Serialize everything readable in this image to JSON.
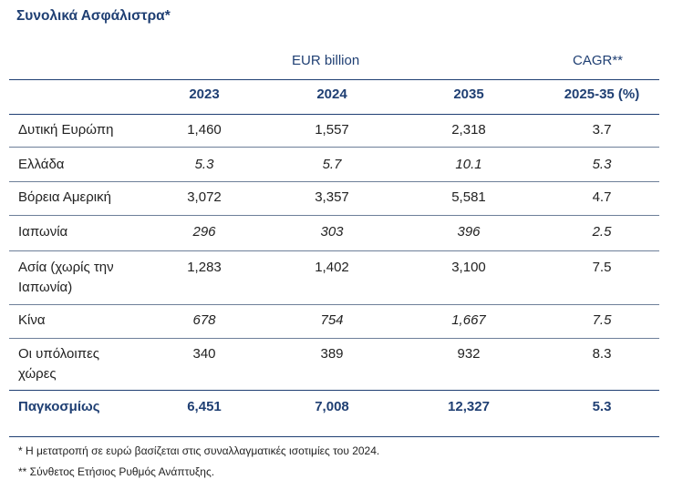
{
  "title": "Συνολικά Ασφάλιστρα*",
  "header": {
    "eur": "EUR billion",
    "cagr": "CAGR**",
    "years": [
      "2023",
      "2024",
      "2035"
    ],
    "cagr_period": "2025-35  (%)"
  },
  "rows": [
    {
      "label": "Δυτική Ευρώπη",
      "v2023": "1,460",
      "v2024": "1,557",
      "v2035": "2,318",
      "cagr": "3.7"
    },
    {
      "label": "Ελλάδα",
      "v2023": "5.3",
      "v2024": "5.7",
      "v2035": "10.1",
      "cagr": "5.3"
    },
    {
      "label": "Βόρεια Αμερική",
      "v2023": "3,072",
      "v2024": "3,357",
      "v2035": "5,581",
      "cagr": "4.7"
    },
    {
      "label": "Ιαπωνία",
      "v2023": "296",
      "v2024": "303",
      "v2035": "396",
      "cagr": "2.5"
    },
    {
      "label": "Ασία (χωρίς την Ιαπωνία)",
      "v2023": "1,283",
      "v2024": "1,402",
      "v2035": "3,100",
      "cagr": "7.5"
    },
    {
      "label": "Κίνα",
      "v2023": "678",
      "v2024": "754",
      "v2035": "1,667",
      "cagr": "7.5"
    },
    {
      "label": "Οι υπόλοιπες χώρες",
      "v2023": "340",
      "v2024": "389",
      "v2035": "932",
      "cagr": "8.3"
    },
    {
      "label": "Παγκοσμίως",
      "v2023": "6,451",
      "v2024": "7,008",
      "v2035": "12,327",
      "cagr": "5.3"
    }
  ],
  "footnotes": [
    "* Η μετατροπή σε ευρώ βασίζεται στις συναλλαγματικές ισοτιμίες του 2024.",
    "**  Σύνθετος Ετήσιος Ρυθμός Ανάπτυξης."
  ]
}
